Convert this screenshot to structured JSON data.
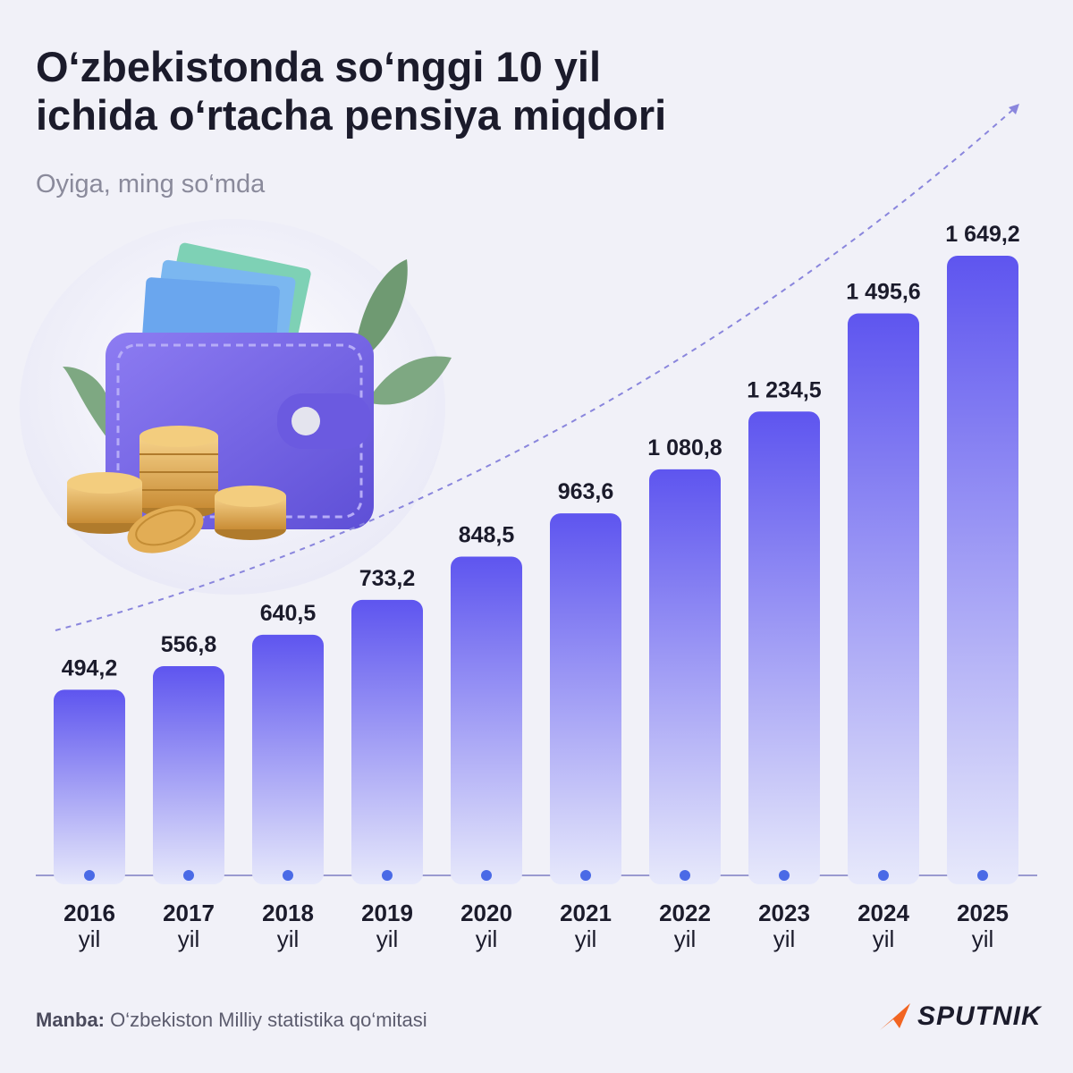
{
  "title_lines": [
    "O‘zbekistonda so‘nggi 10 yil",
    "ichida o‘rtacha pensiya miqdori"
  ],
  "subtitle": "Oyiga, ming so‘mda",
  "source": {
    "label": "Manba:",
    "text": "O‘zbekiston Milliy statistika qo‘mitasi"
  },
  "brand": {
    "name": "SPUTNIK",
    "logo_icon": "sputnik-arrow-icon",
    "logo_color": "#f26522"
  },
  "illustration": {
    "icon": "wallet-with-coins-icon"
  },
  "colors": {
    "bar_top": "#5e55ef",
    "bar_bottom": "#e7e9fb",
    "axis": "#9a9ad0",
    "dot": "#4a6ae6",
    "trend": "#8a86dd"
  },
  "chart_data": {
    "type": "bar",
    "categories": [
      "2016",
      "2017",
      "2018",
      "2019",
      "2020",
      "2021",
      "2022",
      "2023",
      "2024",
      "2025"
    ],
    "unit_label": "yil",
    "values": [
      494.2,
      556.8,
      640.5,
      733.2,
      848.5,
      963.6,
      1080.8,
      1234.5,
      1495.6,
      1649.2
    ],
    "value_labels": [
      "494,2",
      "556,8",
      "640,5",
      "733,2",
      "848,5",
      "963,6",
      "1 080,8",
      "1 234,5",
      "1 495,6",
      "1 649,2"
    ],
    "title": "O‘zbekistonda so‘nggi 10 yil ichida o‘rtacha pensiya miqdori",
    "subtitle": "Oyiga, ming so‘mda",
    "xlabel": "",
    "ylabel": "",
    "ylim": [
      0,
      1649.2
    ],
    "grid": false,
    "legend": "none",
    "trend_arrow": true
  }
}
